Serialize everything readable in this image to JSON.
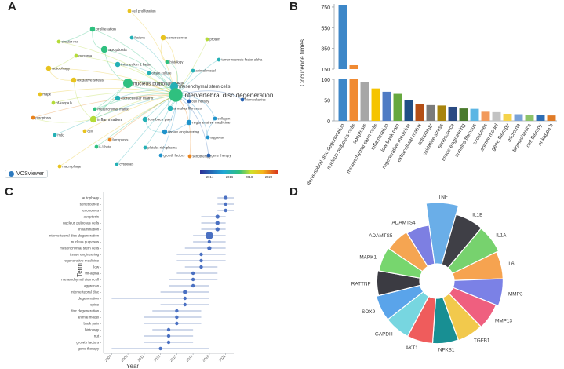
{
  "panels": {
    "a": "A",
    "b": "B",
    "c": "C",
    "d": "D"
  },
  "chart_data": [
    {
      "type": "network",
      "panel": "A",
      "software": "VOSviewer",
      "nodes": [
        {
          "label": "cell proliferation",
          "year": 2019,
          "weight": 1
        },
        {
          "label": "proliferation",
          "year": 2017,
          "weight": 2
        },
        {
          "label": "fusions",
          "year": 2016,
          "weight": 1
        },
        {
          "label": "senescence",
          "year": 2019,
          "weight": 2
        },
        {
          "label": "protein",
          "year": 2018,
          "weight": 1
        },
        {
          "label": "circular rna",
          "year": 2018,
          "weight": 1
        },
        {
          "label": "apoptosis",
          "year": 2017,
          "weight": 3
        },
        {
          "label": "interleukin 1 beta",
          "year": 2016,
          "weight": 2
        },
        {
          "label": "histology",
          "year": 2017,
          "weight": 1
        },
        {
          "label": "tumor necrosis factor alpha",
          "year": 2016,
          "weight": 1
        },
        {
          "label": "microrna",
          "year": 2018,
          "weight": 1
        },
        {
          "label": "organ culture",
          "year": 2016,
          "weight": 1
        },
        {
          "label": "autophagy",
          "year": 2019,
          "weight": 2
        },
        {
          "label": "animal model",
          "year": 2016,
          "weight": 1
        },
        {
          "label": "nucleus pulposus cells",
          "year": 2017,
          "weight": 5
        },
        {
          "label": "mesenchymal stem cells",
          "year": 2016,
          "weight": 4
        },
        {
          "label": "oxidative stress",
          "year": 2019,
          "weight": 2
        },
        {
          "label": "intervertebral disc degeneration",
          "year": 2017,
          "weight": 8
        },
        {
          "label": "mapk",
          "year": 2019,
          "weight": 1
        },
        {
          "label": "extracellular matrix",
          "year": 2016,
          "weight": 2
        },
        {
          "label": "nf-kappa b",
          "year": 2018,
          "weight": 1
        },
        {
          "label": "biomechanics",
          "year": 2014,
          "weight": 1
        },
        {
          "label": "mesenchymal matrix",
          "year": 2017,
          "weight": 1
        },
        {
          "label": "annulus fibrosus",
          "year": 2016,
          "weight": 2
        },
        {
          "label": "cell therapy",
          "year": 2014,
          "weight": 1
        },
        {
          "label": "inflammation",
          "year": 2018,
          "weight": 3
        },
        {
          "label": "pyroptosis",
          "year": 2020,
          "weight": 1
        },
        {
          "label": "low back pain",
          "year": 2016,
          "weight": 2
        },
        {
          "label": "collagen",
          "year": 2015,
          "weight": 1
        },
        {
          "label": "regenerative medicine",
          "year": 2015,
          "weight": 2
        },
        {
          "label": "cell",
          "year": 2019,
          "weight": 1
        },
        {
          "label": "mdd",
          "year": 2016,
          "weight": 1
        },
        {
          "label": "tissue engineering",
          "year": 2015,
          "weight": 2
        },
        {
          "label": "ferroptosis",
          "year": 2020,
          "weight": 1
        },
        {
          "label": "il-1 beta",
          "year": 2017,
          "weight": 1
        },
        {
          "label": "platelet-rich plasma",
          "year": 2016,
          "weight": 1
        },
        {
          "label": "aggrecan",
          "year": 2015,
          "weight": 1
        },
        {
          "label": "senotherapy",
          "year": 2020,
          "weight": 1
        },
        {
          "label": "growth factors",
          "year": 2015,
          "weight": 1
        },
        {
          "label": "gene therapy",
          "year": 2014,
          "weight": 1
        },
        {
          "label": "macrophage",
          "year": 2019,
          "weight": 1
        },
        {
          "label": "cytokines",
          "year": 2016,
          "weight": 1
        }
      ],
      "color_scale": {
        "ticks": [
          "2014",
          "2016",
          "2018",
          "2020"
        ],
        "range": [
          2013,
          2021
        ]
      }
    },
    {
      "type": "bar",
      "panel": "B",
      "title": "",
      "xlabel": "",
      "ylabel": "Occurence times",
      "broken_axis": {
        "lower_ticks": [
          0,
          50,
          100
        ],
        "upper_ticks": [
          150,
          350,
          550,
          750
        ],
        "lower_max": 100,
        "upper_min": 150,
        "upper_max": 780
      },
      "categories": [
        "intervertebral disc degeneration",
        "nucleus pulposus cells",
        "apoptosis",
        "mesenchymal stem cells",
        "inflammation",
        "low back pain",
        "regenerative medicine",
        "extracellular matrix",
        "autophagy",
        "oxidative stress",
        "senescence",
        "tissue engineering",
        "annulus fibrosus",
        "exosomes",
        "animal model",
        "gene therapy",
        "microrna",
        "biomechanics",
        "cell therapy",
        "nf-kappa b"
      ],
      "values": [
        768,
        188,
        93,
        78,
        70,
        65,
        50,
        40,
        38,
        37,
        34,
        30,
        29,
        22,
        21,
        17,
        16,
        15,
        14,
        13
      ],
      "colors": [
        "#3d87c8",
        "#f08a32",
        "#a6a6a6",
        "#f5c400",
        "#4f7bc4",
        "#66a83e",
        "#1f4f86",
        "#b44f16",
        "#7b7b7b",
        "#a8840e",
        "#2a4a82",
        "#4a7a2c",
        "#5cb6e4",
        "#f2995a",
        "#c3c3c3",
        "#f5d34b",
        "#7aa2d8",
        "#8cc269",
        "#2e6db4",
        "#e07b27"
      ]
    },
    {
      "type": "scatter",
      "panel": "C",
      "xlabel": "Year",
      "ylabel": "Term",
      "xticks": [
        "2007",
        "2009",
        "2011",
        "2013",
        "2015",
        "2017",
        "2019",
        "2021"
      ],
      "xlim": [
        2006,
        2022
      ],
      "terms": [
        "autophagy",
        "senescence",
        "exosomes",
        "apoptosis",
        "nucleus pulposus cells",
        "inflammation",
        "intervertebral disc degeneration",
        "nucleus pulposus",
        "mesenchymal stem cells",
        "tissue engineering",
        "regenerative medicine",
        "low",
        "tnf-alpha",
        "mesenchymal stem-cell",
        "aggrecan",
        "intervertebral disc",
        "degeneration",
        "spine",
        "disc degeneration",
        "animal model",
        "back pain",
        "histology",
        "nut",
        "growth factors",
        "gene therapy"
      ],
      "median": [
        2021,
        2021,
        2021,
        2020,
        2020,
        2020,
        2019,
        2019,
        2019,
        2018,
        2018,
        2018,
        2017,
        2017,
        2017,
        2016,
        2016,
        2016,
        2015,
        2015,
        2015,
        2014,
        2014,
        2014,
        2013
      ],
      "q1": [
        2020,
        2020,
        2020,
        2018,
        2018,
        2018,
        2017,
        2017,
        2016,
        2015,
        2015,
        2016,
        2015,
        2014,
        2014,
        2013,
        2007,
        2013,
        2012,
        2011,
        2011,
        2012,
        2011,
        2011,
        2007
      ],
      "q3": [
        2022,
        2022,
        2022,
        2021,
        2021,
        2021,
        2021,
        2021,
        2021,
        2021,
        2021,
        2020,
        2020,
        2020,
        2019,
        2019,
        2019,
        2019,
        2018,
        2018,
        2018,
        2017,
        2017,
        2017,
        2019
      ],
      "freq": [
        3,
        2,
        2,
        3,
        3,
        3,
        8,
        2,
        3,
        2,
        2,
        2,
        2,
        2,
        2,
        3,
        2,
        2,
        2,
        2,
        2,
        2,
        2,
        2,
        2
      ]
    },
    {
      "type": "pie",
      "panel": "D",
      "subtype": "nightingale-rose",
      "categories": [
        "TNF",
        "IL1B",
        "IL1A",
        "IL6",
        "MMP3",
        "MMP13",
        "TGFB1",
        "NFKB1",
        "AKT1",
        "GAPDH",
        "SOX9",
        "RATTNF",
        "MAPK1",
        "ADAMTS5",
        "ADAMTS4"
      ],
      "values": [
        100,
        85,
        84,
        80,
        80,
        76,
        75,
        74,
        74,
        74,
        74,
        70,
        68,
        66,
        64
      ],
      "colors": [
        "#6aaee8",
        "#3f3f46",
        "#77d26e",
        "#f6a350",
        "#7b81e6",
        "#ef5f7f",
        "#f2c94c",
        "#188f93",
        "#ef5c5c",
        "#77d6e0",
        "#5aa4ea",
        "#3b3b42",
        "#77d66e",
        "#f5a552",
        "#7d7fe2"
      ]
    }
  ]
}
